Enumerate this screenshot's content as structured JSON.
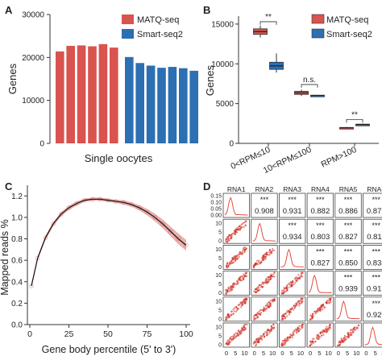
{
  "colors": {
    "matq": "#d9534f",
    "smart": "#2c6fb3",
    "curve": "#111111",
    "curve_band": "#e8a6a3",
    "scatter": "#cc2a1f",
    "density": "#e53a2f"
  },
  "panels": {
    "A": {
      "letter": "A"
    },
    "B": {
      "letter": "B"
    },
    "C": {
      "letter": "C"
    },
    "D": {
      "letter": "D"
    }
  },
  "chart_data": [
    {
      "panel": "A",
      "type": "bar",
      "ylabel": "Genes",
      "xlabel": "Single oocytes",
      "ylim": [
        0,
        30000
      ],
      "yticks": [
        "0",
        "10000",
        "20000",
        "30000"
      ],
      "legend": {
        "placement": "top-right"
      },
      "series": [
        {
          "name": "MATQ-seq",
          "values": [
            21400,
            22700,
            22800,
            22600,
            23100,
            22300
          ]
        },
        {
          "name": "Smart-seq2",
          "values": [
            20100,
            18700,
            18100,
            17600,
            17800,
            17500,
            16900
          ]
        }
      ]
    },
    {
      "panel": "B",
      "type": "box",
      "ylabel": "Genes",
      "ylim": [
        0,
        16000
      ],
      "yticks": [
        "0",
        "5000",
        "10000",
        "15000"
      ],
      "categories": [
        "0<RPM≤10",
        "10<RPM≤100",
        "RPM>100"
      ],
      "legend": {
        "placement": "top-right"
      },
      "series": [
        {
          "name": "MATQ-seq",
          "boxes": [
            {
              "min": 13300,
              "q1": 13700,
              "median": 14050,
              "q3": 14400,
              "max": 14800
            },
            {
              "min": 5950,
              "q1": 6150,
              "median": 6350,
              "q3": 6550,
              "max": 6750
            },
            {
              "min": 1850,
              "q1": 1920,
              "median": 1960,
              "q3": 2000,
              "max": 2050
            }
          ]
        },
        {
          "name": "Smart-seq2",
          "boxes": [
            {
              "min": 8900,
              "q1": 9300,
              "median": 9750,
              "q3": 10200,
              "max": 11300
            },
            {
              "min": 5930,
              "q1": 5990,
              "median": 6020,
              "q3": 6060,
              "max": 6100
            },
            {
              "min": 2300,
              "q1": 2350,
              "median": 2380,
              "q3": 2410,
              "max": 2450
            }
          ]
        }
      ],
      "annotations": [
        "**",
        "n.s.",
        "**"
      ]
    },
    {
      "panel": "C",
      "type": "line",
      "ylabel": "Mapped reads %",
      "xlabel": "Gene body percentile (5' to 3')",
      "xlim": [
        0,
        100
      ],
      "ylim": [
        0.0,
        1.3
      ],
      "xticks": [
        "0",
        "25",
        "50",
        "75",
        "100"
      ],
      "yticks": [
        "0.0",
        "0.2",
        "0.4",
        "0.6",
        "0.8",
        "1.0",
        "1.2"
      ],
      "x": [
        1,
        5,
        10,
        15,
        20,
        25,
        30,
        35,
        40,
        45,
        50,
        55,
        60,
        65,
        70,
        75,
        80,
        85,
        90,
        95,
        100
      ],
      "y": [
        0.36,
        0.62,
        0.81,
        0.94,
        1.03,
        1.09,
        1.13,
        1.16,
        1.17,
        1.17,
        1.16,
        1.15,
        1.14,
        1.12,
        1.09,
        1.05,
        1.0,
        0.94,
        0.87,
        0.8,
        0.74
      ],
      "band_halfwidth": [
        0.02,
        0.02,
        0.02,
        0.02,
        0.02,
        0.02,
        0.02,
        0.015,
        0.015,
        0.015,
        0.015,
        0.015,
        0.02,
        0.02,
        0.025,
        0.03,
        0.035,
        0.04,
        0.045,
        0.05,
        0.05
      ]
    },
    {
      "panel": "D",
      "type": "scatter-matrix",
      "labels": [
        "RNA1",
        "RNA2",
        "RNA3",
        "RNA4",
        "RNA5",
        "RNA6"
      ],
      "axis_ticks": [
        "0",
        "5",
        "10"
      ],
      "diag_yticks": [
        "0.00",
        "0.05",
        "0.10",
        "0.15"
      ],
      "row_yticks": [
        "0",
        "5",
        "10"
      ],
      "significance": "***",
      "correlations": [
        [
          null,
          0.908,
          0.931,
          0.882,
          0.886,
          0.877
        ],
        [
          null,
          null,
          0.934,
          0.803,
          0.827,
          0.811
        ],
        [
          null,
          null,
          null,
          0.827,
          0.85,
          0.838
        ],
        [
          null,
          null,
          null,
          null,
          0.939,
          0.917
        ],
        [
          null,
          null,
          null,
          null,
          null,
          0.929
        ],
        [
          null,
          null,
          null,
          null,
          null,
          null
        ]
      ]
    }
  ]
}
